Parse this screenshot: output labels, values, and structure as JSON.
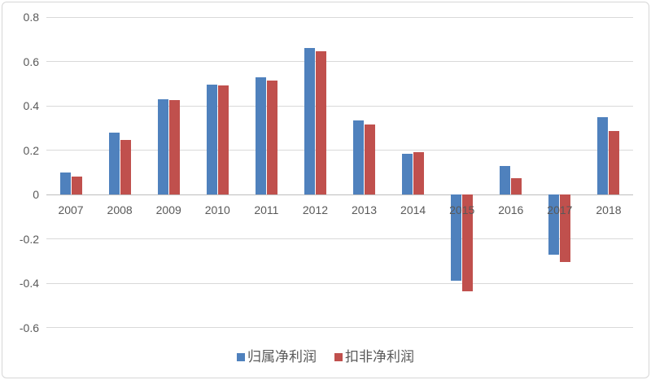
{
  "chart_data": {
    "type": "bar",
    "title": "",
    "categories": [
      "2007",
      "2008",
      "2009",
      "2010",
      "2011",
      "2012",
      "2013",
      "2014",
      "2015",
      "2016",
      "2017",
      "2018"
    ],
    "series": [
      {
        "name": "归属净利润",
        "color": "#4F81BD",
        "values": [
          0.1,
          0.28,
          0.43,
          0.495,
          0.53,
          0.66,
          0.335,
          0.185,
          -0.39,
          0.13,
          -0.27,
          0.35
        ]
      },
      {
        "name": "扣非净利润",
        "color": "#C0504D",
        "values": [
          0.08,
          0.245,
          0.425,
          0.49,
          0.515,
          0.645,
          0.315,
          0.19,
          -0.435,
          0.075,
          -0.305,
          0.285
        ]
      }
    ],
    "y_axis": {
      "ticks": [
        "0.8",
        "0.6",
        "0.4",
        "0.2",
        "0",
        "-0.2",
        "-0.4",
        "-0.6"
      ],
      "min": -0.7,
      "max": 0.85
    },
    "x_axis_label": "",
    "y_axis_label": "",
    "grid": true,
    "legend_position": "bottom"
  },
  "colors": {
    "background": "#FFFFFF",
    "border": "#D7D7D7",
    "gridline": "#D9D9D9",
    "zero_axis": "#BDBDBD",
    "axis_text": "#595959"
  }
}
